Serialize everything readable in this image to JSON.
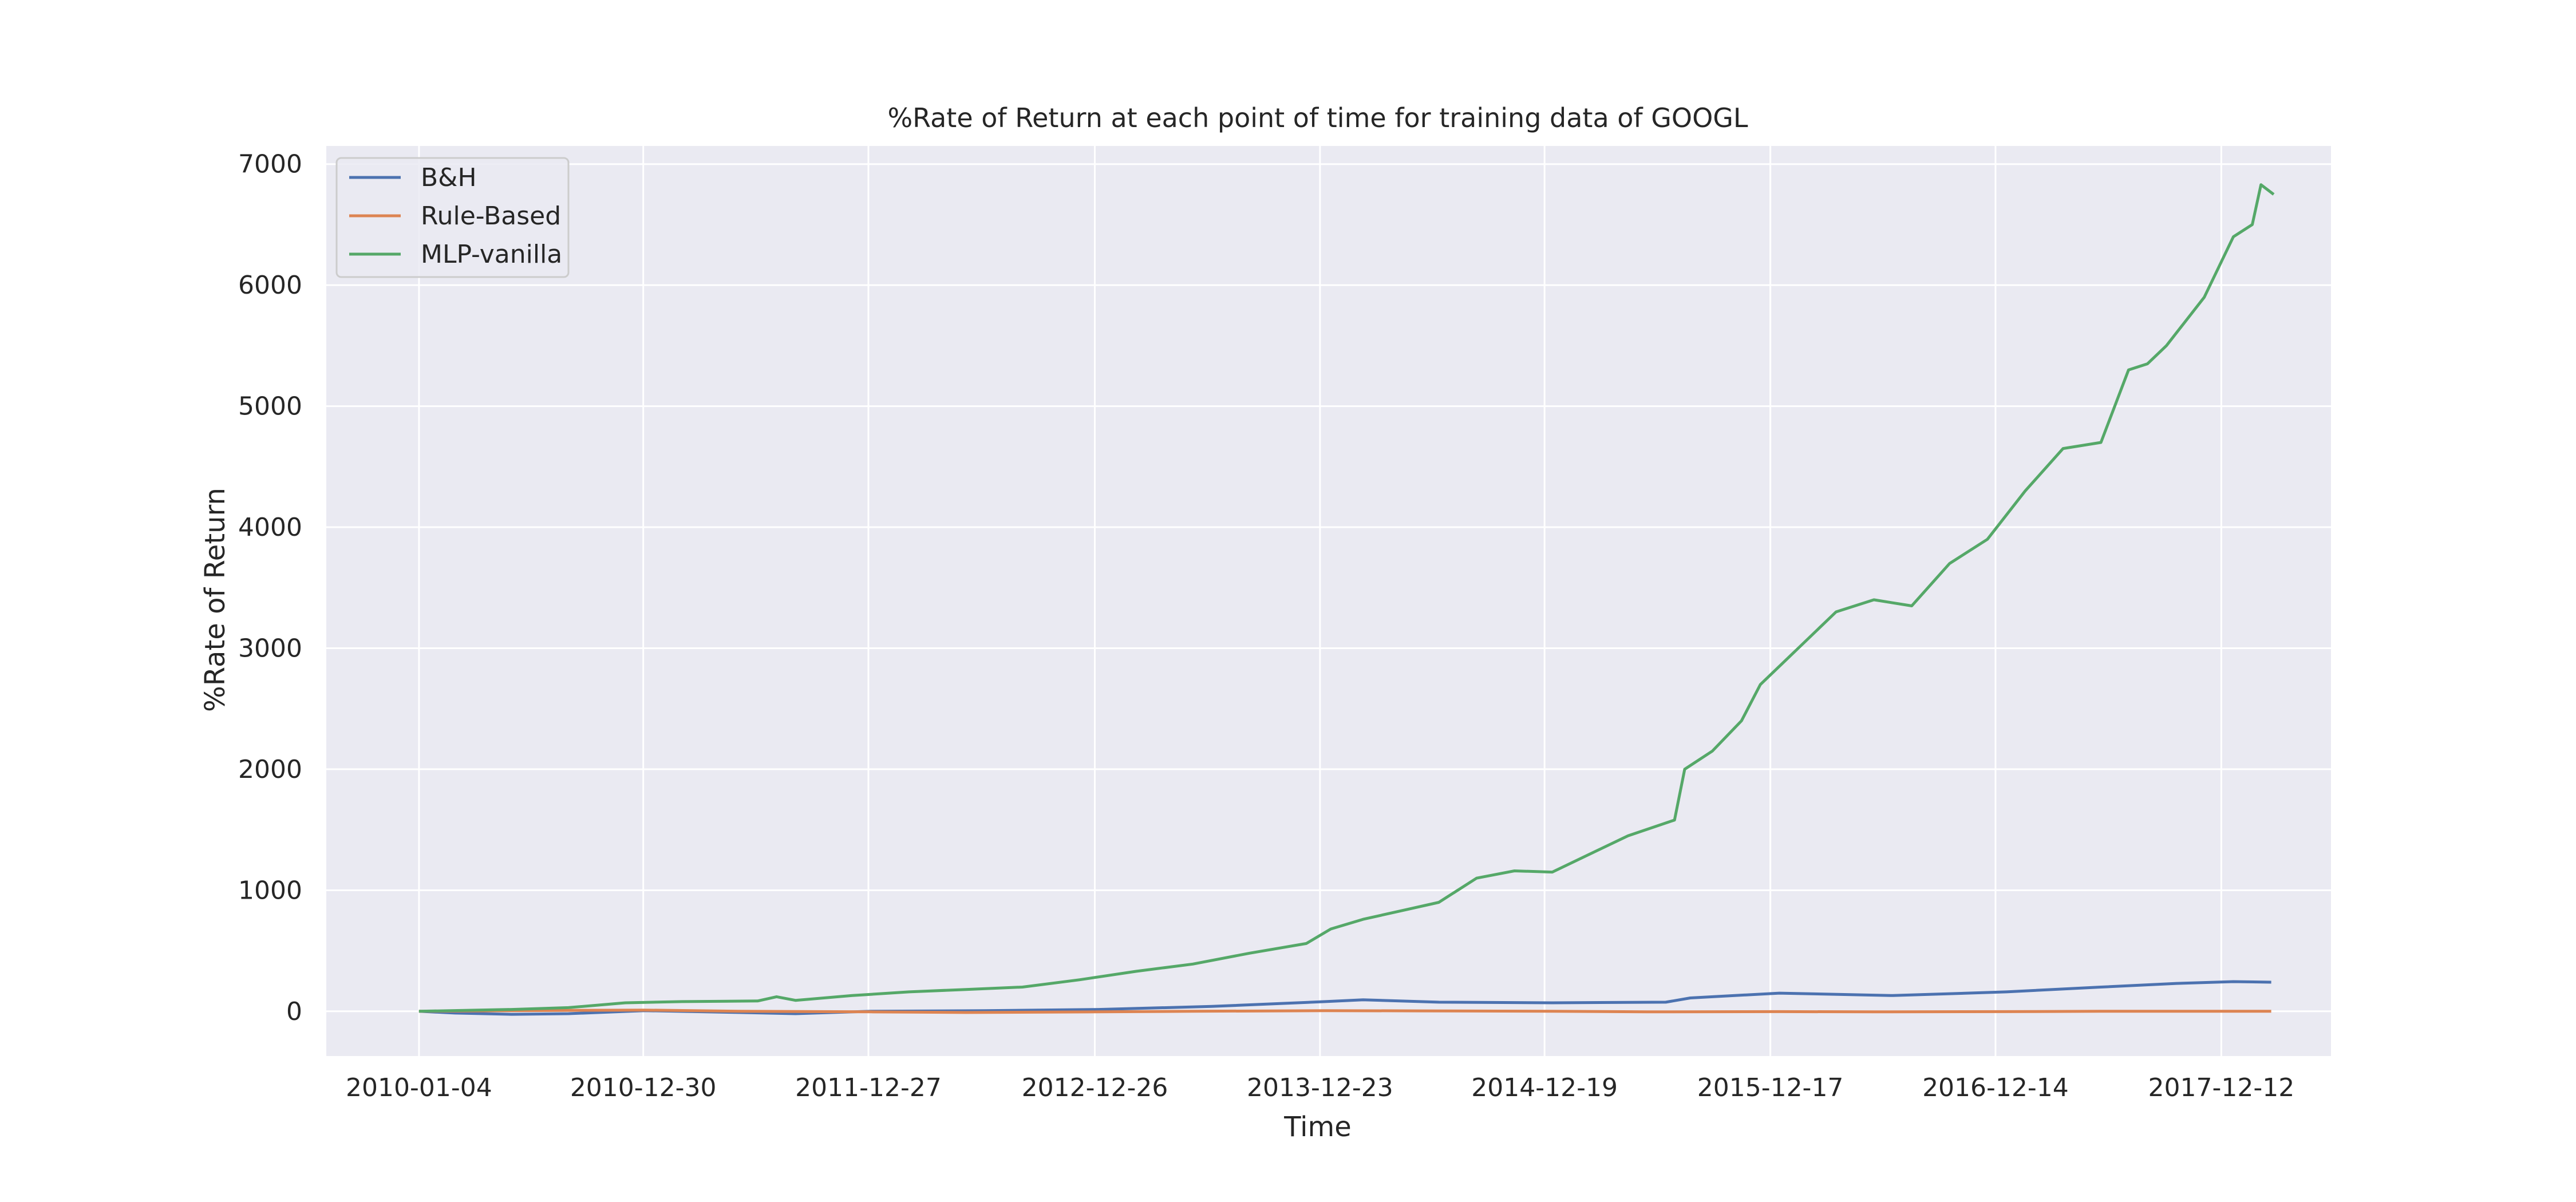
{
  "chart_data": {
    "type": "line",
    "title": "%Rate of Return at each point of time for training data of GOOGL",
    "xlabel": "Time",
    "ylabel": "%Rate of Return",
    "x_ticks": [
      "2010-01-04",
      "2010-12-30",
      "2011-12-27",
      "2012-12-26",
      "2013-12-23",
      "2014-12-19",
      "2015-12-17",
      "2016-12-14",
      "2017-12-12"
    ],
    "y_ticks": [
      "0",
      "1000",
      "2000",
      "3000",
      "4000",
      "5000",
      "6000",
      "7000"
    ],
    "ylim": [
      -370,
      7150
    ],
    "xlim_years": [
      2009.6,
      2018.43
    ],
    "grid": true,
    "legend_position": "top-left",
    "series": [
      {
        "name": "B&H",
        "color": "#4c72b0",
        "points": [
          [
            "2010-01-04",
            0
          ],
          [
            "2010-03-01",
            -15
          ],
          [
            "2010-06-01",
            -25
          ],
          [
            "2010-09-01",
            -20
          ],
          [
            "2011-01-01",
            5
          ],
          [
            "2011-06-01",
            -10
          ],
          [
            "2011-09-01",
            -20
          ],
          [
            "2012-01-01",
            0
          ],
          [
            "2012-07-01",
            5
          ],
          [
            "2013-01-01",
            15
          ],
          [
            "2013-07-01",
            40
          ],
          [
            "2014-01-01",
            80
          ],
          [
            "2014-03-01",
            95
          ],
          [
            "2014-07-01",
            75
          ],
          [
            "2015-01-01",
            70
          ],
          [
            "2015-07-01",
            75
          ],
          [
            "2015-08-10",
            110
          ],
          [
            "2016-01-01",
            150
          ],
          [
            "2016-07-01",
            130
          ],
          [
            "2017-01-01",
            160
          ],
          [
            "2017-06-01",
            200
          ],
          [
            "2017-10-01",
            230
          ],
          [
            "2018-01-01",
            245
          ],
          [
            "2018-03-01",
            240
          ]
        ]
      },
      {
        "name": "Rule-Based",
        "color": "#dd8452",
        "points": [
          [
            "2010-01-04",
            0
          ],
          [
            "2010-06-01",
            5
          ],
          [
            "2011-01-01",
            10
          ],
          [
            "2011-06-01",
            0
          ],
          [
            "2012-01-01",
            -5
          ],
          [
            "2012-06-01",
            -10
          ],
          [
            "2013-01-01",
            -5
          ],
          [
            "2013-06-01",
            0
          ],
          [
            "2014-01-01",
            5
          ],
          [
            "2014-06-01",
            3
          ],
          [
            "2015-01-01",
            0
          ],
          [
            "2015-06-01",
            -5
          ],
          [
            "2016-01-01",
            -3
          ],
          [
            "2016-06-01",
            -5
          ],
          [
            "2017-01-01",
            -3
          ],
          [
            "2017-06-01",
            0
          ],
          [
            "2018-01-01",
            0
          ],
          [
            "2018-03-01",
            0
          ]
        ]
      },
      {
        "name": "MLP-vanilla",
        "color": "#55a868",
        "points": [
          [
            "2010-01-04",
            0
          ],
          [
            "2010-06-01",
            15
          ],
          [
            "2010-09-01",
            30
          ],
          [
            "2010-12-01",
            70
          ],
          [
            "2011-03-01",
            80
          ],
          [
            "2011-07-01",
            85
          ],
          [
            "2011-08-01",
            120
          ],
          [
            "2011-09-01",
            90
          ],
          [
            "2011-12-01",
            130
          ],
          [
            "2012-03-01",
            160
          ],
          [
            "2012-06-01",
            180
          ],
          [
            "2012-09-01",
            200
          ],
          [
            "2012-12-01",
            260
          ],
          [
            "2013-03-01",
            330
          ],
          [
            "2013-06-01",
            390
          ],
          [
            "2013-09-01",
            480
          ],
          [
            "2013-12-01",
            560
          ],
          [
            "2014-01-10",
            680
          ],
          [
            "2014-03-01",
            760
          ],
          [
            "2014-05-01",
            830
          ],
          [
            "2014-07-01",
            900
          ],
          [
            "2014-09-01",
            1100
          ],
          [
            "2014-11-01",
            1160
          ],
          [
            "2015-01-01",
            1150
          ],
          [
            "2015-03-01",
            1300
          ],
          [
            "2015-05-01",
            1450
          ],
          [
            "2015-07-15",
            1580
          ],
          [
            "2015-08-01",
            2000
          ],
          [
            "2015-09-15",
            2150
          ],
          [
            "2015-11-01",
            2400
          ],
          [
            "2015-12-01",
            2700
          ],
          [
            "2016-02-01",
            3000
          ],
          [
            "2016-04-01",
            3300
          ],
          [
            "2016-06-01",
            3400
          ],
          [
            "2016-08-01",
            3350
          ],
          [
            "2016-10-01",
            3700
          ],
          [
            "2016-12-01",
            3900
          ],
          [
            "2017-02-01",
            4300
          ],
          [
            "2017-04-01",
            4650
          ],
          [
            "2017-06-01",
            4700
          ],
          [
            "2017-07-15",
            5300
          ],
          [
            "2017-08-15",
            5350
          ],
          [
            "2017-09-15",
            5500
          ],
          [
            "2017-11-15",
            5900
          ],
          [
            "2018-01-01",
            6400
          ],
          [
            "2018-02-01",
            6500
          ],
          [
            "2018-02-15",
            6830
          ],
          [
            "2018-03-05",
            6750
          ]
        ]
      }
    ]
  }
}
